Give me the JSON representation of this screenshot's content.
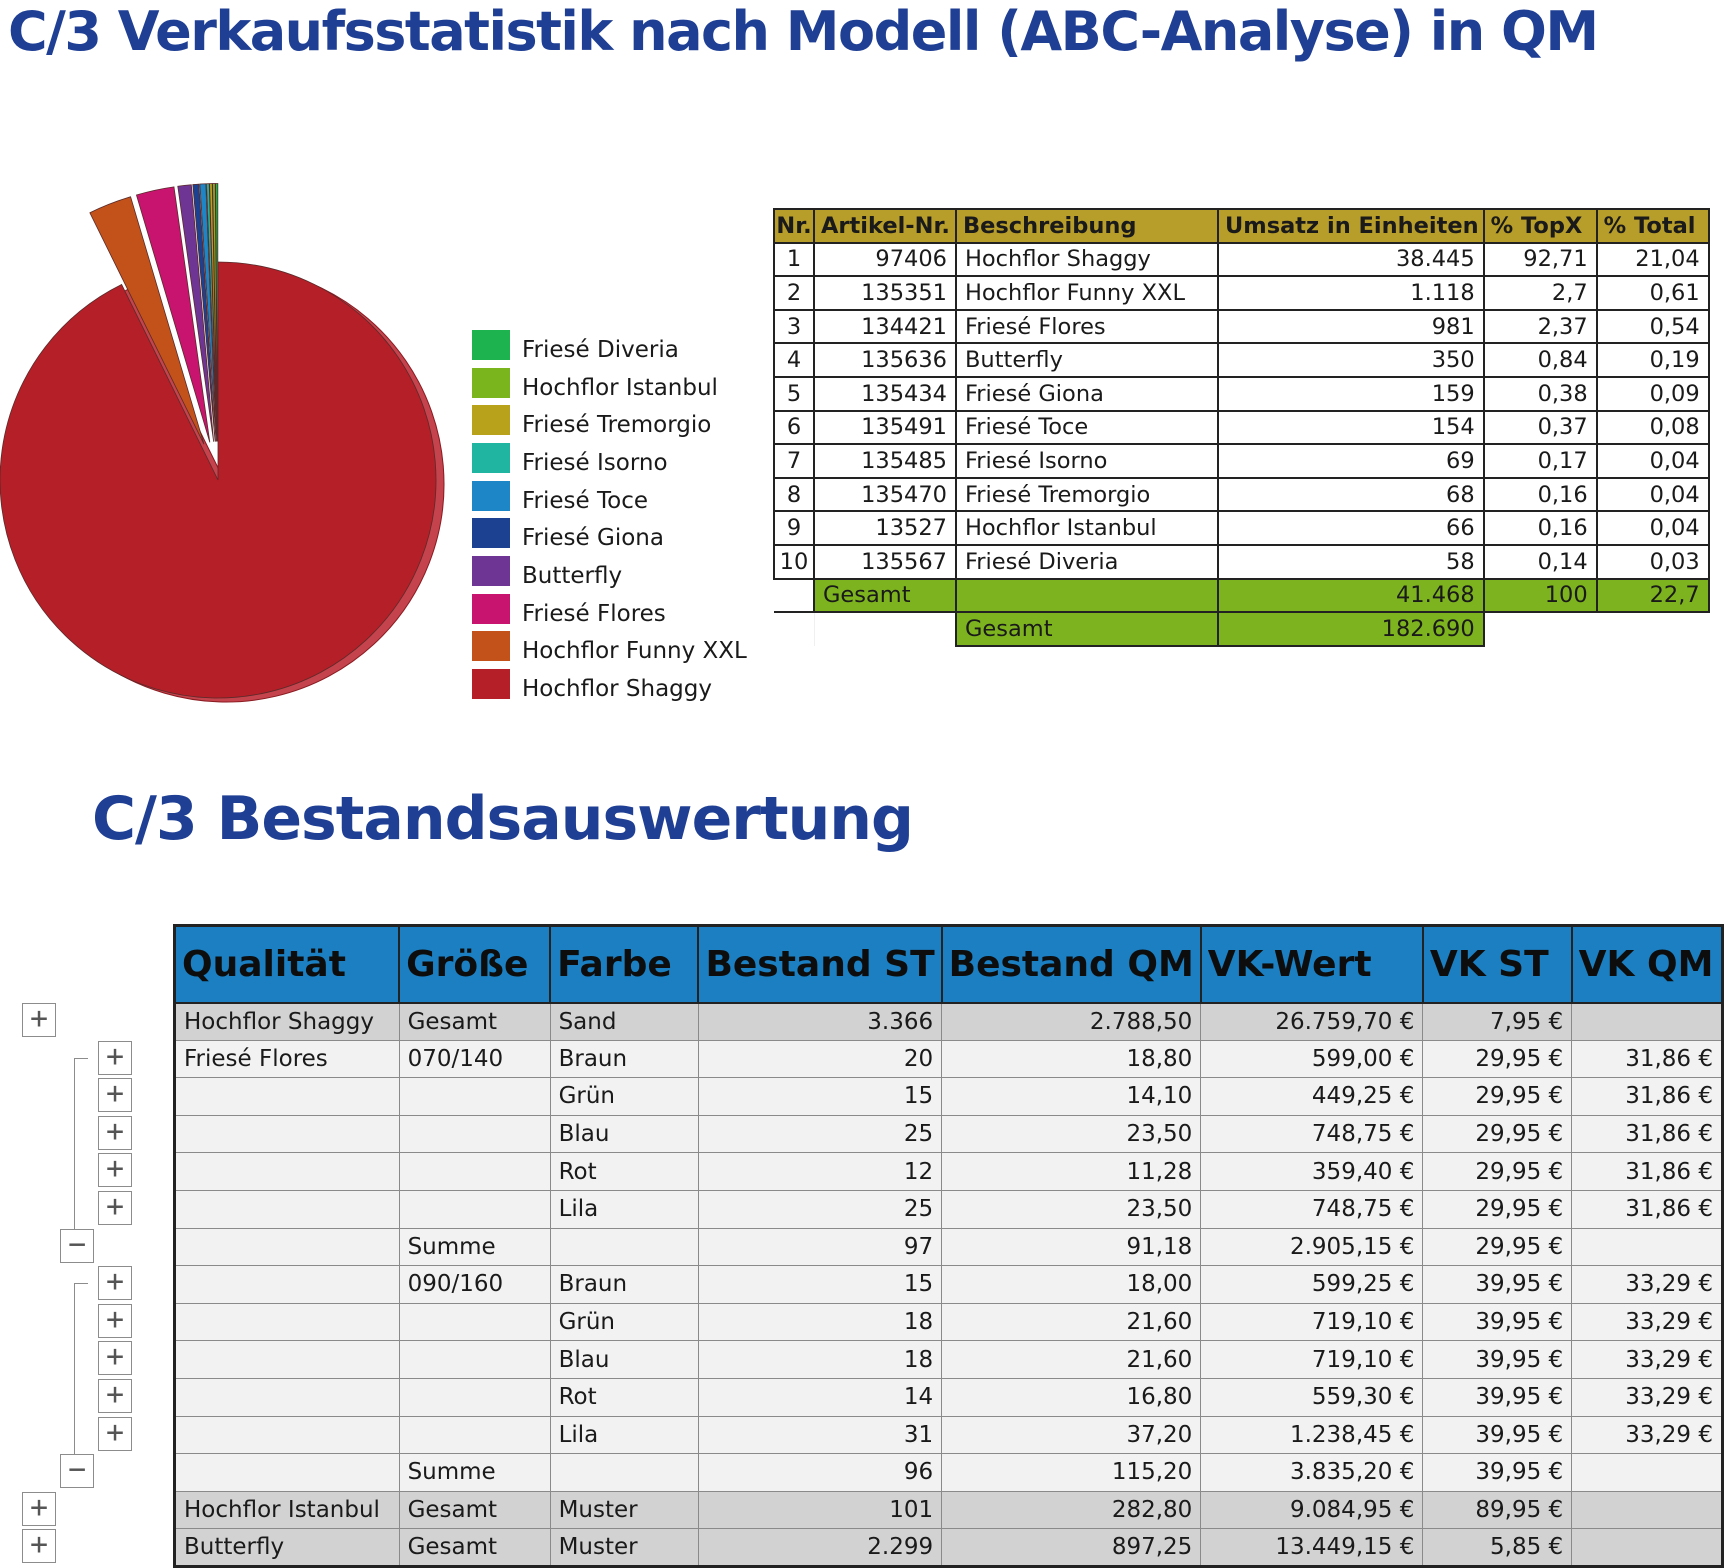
{
  "title_main": "C/3 Verkaufsstatistik nach Modell (ABC-Analyse) in QM",
  "title_second": "C/3 Bestandsauswertung",
  "chart_data": {
    "type": "pie",
    "title": "",
    "legend": [
      {
        "label": "Friesé Diveria",
        "color": "#1db34e"
      },
      {
        "label": "Hochflor Istanbul",
        "color": "#7ab51d"
      },
      {
        "label": "Friesé Tremorgio",
        "color": "#b8a21c"
      },
      {
        "label": "Friesé Isorno",
        "color": "#1fb5a0"
      },
      {
        "label": "Friesé Toce",
        "color": "#1c86c6"
      },
      {
        "label": "Friesé Giona",
        "color": "#1c4190"
      },
      {
        "label": "Butterfly",
        "color": "#6e3594"
      },
      {
        "label": "Friesé Flores",
        "color": "#c8136f"
      },
      {
        "label": "Hochflor Funny XXL",
        "color": "#c2521a"
      },
      {
        "label": "Hochflor Shaggy",
        "color": "#b41f28"
      }
    ],
    "legend_position": "right",
    "slices": [
      {
        "label": "Hochflor Shaggy",
        "value": 92.71,
        "color": "#b41f28"
      },
      {
        "label": "Hochflor Funny XXL",
        "value": 2.7,
        "color": "#c2521a"
      },
      {
        "label": "Friesé Flores",
        "value": 2.37,
        "color": "#c8136f"
      },
      {
        "label": "Butterfly",
        "value": 0.84,
        "color": "#6e3594"
      },
      {
        "label": "Friesé Giona",
        "value": 0.38,
        "color": "#1c4190"
      },
      {
        "label": "Friesé Toce",
        "value": 0.37,
        "color": "#1c86c6"
      },
      {
        "label": "Friesé Isorno",
        "value": 0.17,
        "color": "#1fb5a0"
      },
      {
        "label": "Friesé Tremorgio",
        "value": 0.16,
        "color": "#b8a21c"
      },
      {
        "label": "Hochflor Istanbul",
        "value": 0.16,
        "color": "#7ab51d"
      },
      {
        "label": "Friesé Diveria",
        "value": 0.14,
        "color": "#1db34e"
      }
    ]
  },
  "abc_table": {
    "headers": [
      "Nr.",
      "Artikel-Nr.",
      "Beschreibung",
      "Umsatz in Einheiten",
      "% TopX",
      "% Total"
    ],
    "rows": [
      [
        "1",
        "97406",
        "Hochflor Shaggy",
        "38.445",
        "92,71",
        "21,04"
      ],
      [
        "2",
        "135351",
        "Hochflor Funny XXL",
        "1.118",
        "2,7",
        "0,61"
      ],
      [
        "3",
        "134421",
        "Friesé Flores",
        "981",
        "2,37",
        "0,54"
      ],
      [
        "4",
        "135636",
        "Butterfly",
        "350",
        "0,84",
        "0,19"
      ],
      [
        "5",
        "135434",
        "Friesé Giona",
        "159",
        "0,38",
        "0,09"
      ],
      [
        "6",
        "135491",
        "Friesé Toce",
        "154",
        "0,37",
        "0,08"
      ],
      [
        "7",
        "135485",
        "Friesé Isorno",
        "69",
        "0,17",
        "0,04"
      ],
      [
        "8",
        "135470",
        "Friesé Tremorgio",
        "68",
        "0,16",
        "0,04"
      ],
      [
        "9",
        "13527",
        "Hochflor Istanbul",
        "66",
        "0,16",
        "0,04"
      ],
      [
        "10",
        "135567",
        "Friesé Diveria",
        "58",
        "0,14",
        "0,03"
      ]
    ],
    "subtotal": {
      "label": "Gesamt",
      "units": "41.468",
      "topx": "100",
      "total": "22,7"
    },
    "grand_total": {
      "label": "Gesamt",
      "units": "182.690"
    },
    "header_color": "#b79d2a",
    "total_color": "#7db31f"
  },
  "bestand_table": {
    "headers": [
      "Qualität",
      "Größe",
      "Farbe",
      "Bestand ST",
      "Bestand QM",
      "VK-Wert",
      "VK ST",
      "VK QM"
    ],
    "rows": [
      {
        "style": "grey",
        "cells": [
          "Hochflor Shaggy",
          "Gesamt",
          "Sand",
          "3.366",
          "2.788,50",
          "26.759,70 €",
          "7,95 €",
          ""
        ]
      },
      {
        "style": "",
        "cells": [
          "Friesé Flores",
          "070/140",
          "Braun",
          "20",
          "18,80",
          "599,00 €",
          "29,95 €",
          "31,86 €"
        ]
      },
      {
        "style": "",
        "cells": [
          "",
          "",
          "Grün",
          "15",
          "14,10",
          "449,25 €",
          "29,95 €",
          "31,86 €"
        ]
      },
      {
        "style": "",
        "cells": [
          "",
          "",
          "Blau",
          "25",
          "23,50",
          "748,75 €",
          "29,95 €",
          "31,86 €"
        ]
      },
      {
        "style": "",
        "cells": [
          "",
          "",
          "Rot",
          "12",
          "11,28",
          "359,40 €",
          "29,95 €",
          "31,86 €"
        ]
      },
      {
        "style": "",
        "cells": [
          "",
          "",
          "Lila",
          "25",
          "23,50",
          "748,75 €",
          "29,95 €",
          "31,86 €"
        ]
      },
      {
        "style": "",
        "cells": [
          "",
          "Summe",
          "",
          "97",
          "91,18",
          "2.905,15 €",
          "29,95 €",
          ""
        ]
      },
      {
        "style": "",
        "cells": [
          "",
          "090/160",
          "Braun",
          "15",
          "18,00",
          "599,25 €",
          "39,95 €",
          "33,29 €"
        ]
      },
      {
        "style": "",
        "cells": [
          "",
          "",
          "Grün",
          "18",
          "21,60",
          "719,10 €",
          "39,95 €",
          "33,29 €"
        ]
      },
      {
        "style": "",
        "cells": [
          "",
          "",
          "Blau",
          "18",
          "21,60",
          "719,10 €",
          "39,95 €",
          "33,29 €"
        ]
      },
      {
        "style": "",
        "cells": [
          "",
          "",
          "Rot",
          "14",
          "16,80",
          "559,30 €",
          "39,95 €",
          "33,29 €"
        ]
      },
      {
        "style": "",
        "cells": [
          "",
          "",
          "Lila",
          "31",
          "37,20",
          "1.238,45 €",
          "39,95 €",
          "33,29 €"
        ]
      },
      {
        "style": "",
        "cells": [
          "",
          "Summe",
          "",
          "96",
          "115,20",
          "3.835,20 €",
          "39,95 €",
          ""
        ]
      },
      {
        "style": "grey",
        "cells": [
          "Hochflor Istanbul",
          "Gesamt",
          "Muster",
          "101",
          "282,80",
          "9.084,95 €",
          "89,95 €",
          ""
        ]
      },
      {
        "style": "grey",
        "cells": [
          "Butterfly",
          "Gesamt",
          "Muster",
          "2.299",
          "897,25",
          "13.449,15 €",
          "5,85 €",
          ""
        ]
      }
    ],
    "header_color": "#1b7fc1",
    "outline_buttons": [
      {
        "symbol": "+",
        "icon": "expand-icon"
      },
      {
        "symbol": "+",
        "icon": "expand-icon"
      },
      {
        "symbol": "+",
        "icon": "expand-icon"
      },
      {
        "symbol": "+",
        "icon": "expand-icon"
      },
      {
        "symbol": "+",
        "icon": "expand-icon"
      },
      {
        "symbol": "+",
        "icon": "expand-icon"
      },
      {
        "symbol": "−",
        "icon": "collapse-icon"
      },
      {
        "symbol": "+",
        "icon": "expand-icon"
      },
      {
        "symbol": "+",
        "icon": "expand-icon"
      },
      {
        "symbol": "+",
        "icon": "expand-icon"
      },
      {
        "symbol": "+",
        "icon": "expand-icon"
      },
      {
        "symbol": "+",
        "icon": "expand-icon"
      },
      {
        "symbol": "−",
        "icon": "collapse-icon"
      },
      {
        "symbol": "+",
        "icon": "expand-icon"
      },
      {
        "symbol": "+",
        "icon": "expand-icon"
      }
    ]
  }
}
